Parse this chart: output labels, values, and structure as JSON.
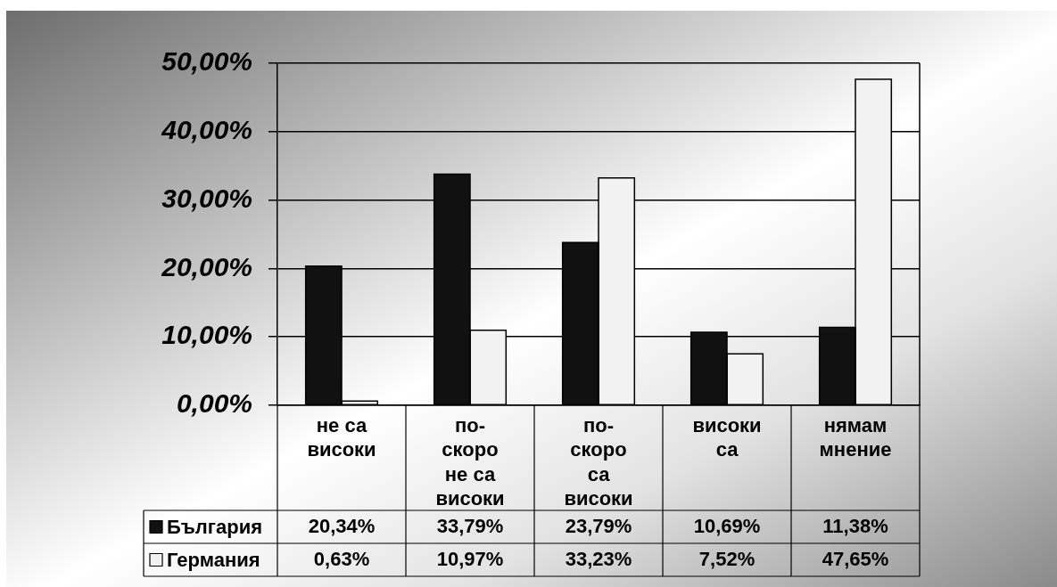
{
  "chart_data": {
    "type": "bar",
    "categories": [
      "не са високи",
      "по-скоро не са високи",
      "по-скоро са високи",
      "високи са",
      "нямам мнение"
    ],
    "series": [
      {
        "name": "България",
        "color": "#111111",
        "values": [
          20.34,
          33.79,
          23.79,
          10.69,
          11.38
        ],
        "value_labels": [
          "20,34%",
          "33,79%",
          "23,79%",
          "10,69%",
          "11,38%"
        ]
      },
      {
        "name": "Германия",
        "color": "#f2f2f2",
        "values": [
          0.63,
          10.97,
          33.23,
          7.52,
          47.65
        ],
        "value_labels": [
          "0,63%",
          "10,97%",
          "33,23%",
          "7,52%",
          "47,65%"
        ]
      }
    ],
    "ylim": [
      0,
      50
    ],
    "yticks": [
      {
        "value": 0,
        "label": "0,00%"
      },
      {
        "value": 10,
        "label": "10,00%"
      },
      {
        "value": 20,
        "label": "20,00%"
      },
      {
        "value": 30,
        "label": "30,00%"
      },
      {
        "value": 40,
        "label": "40,00%"
      },
      {
        "value": 50,
        "label": "50,00%"
      }
    ],
    "grid": "y",
    "legend": "bottom"
  }
}
